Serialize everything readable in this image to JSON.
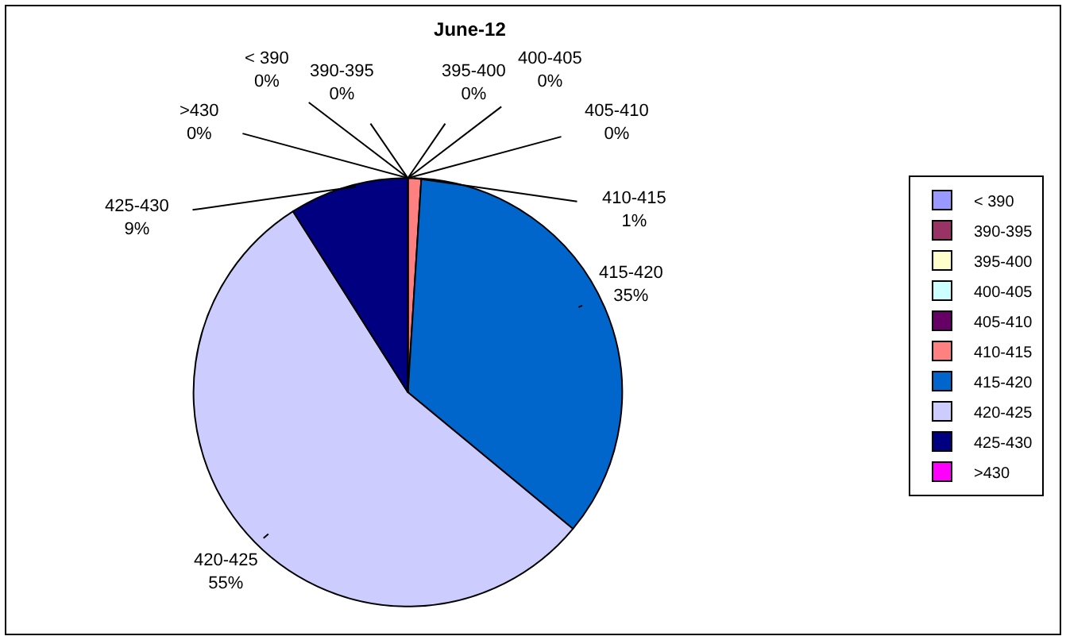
{
  "chart_data": {
    "type": "pie",
    "title": "June-12",
    "categories": [
      "< 390",
      "390-395",
      "395-400",
      "400-405",
      "405-410",
      "410-415",
      "415-420",
      "420-425",
      "425-430",
      ">430"
    ],
    "values": [
      0,
      0,
      0,
      0,
      0,
      1,
      35,
      55,
      9,
      0
    ],
    "value_labels": [
      "0%",
      "0%",
      "0%",
      "0%",
      "0%",
      "1%",
      "35%",
      "55%",
      "9%",
      "0%"
    ],
    "colors": [
      "#9999ff",
      "#993366",
      "#ffffcc",
      "#ccffff",
      "#660066",
      "#ff8080",
      "#0066cc",
      "#ccccff",
      "#000080",
      "#ff00ff"
    ],
    "legend": "right"
  }
}
